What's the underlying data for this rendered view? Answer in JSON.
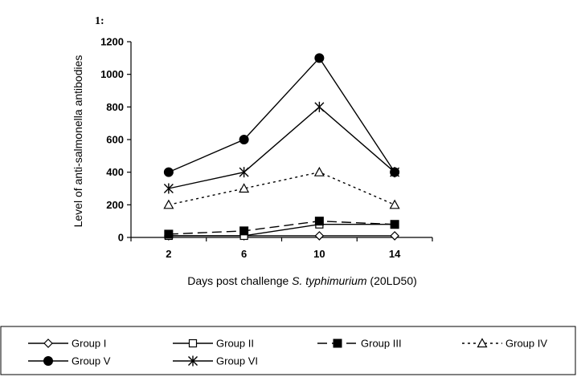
{
  "figure_label": "1:",
  "chart_data": {
    "type": "line",
    "title": "",
    "xlabel_prefix": "Days post challenge ",
    "xlabel_italic": "S. typhimurium",
    "xlabel_suffix": " (20LD50)",
    "ylabel": "Level of anti-salmonella antibodies",
    "categories": [
      "2",
      "6",
      "10",
      "14"
    ],
    "x": [
      2,
      6,
      10,
      14
    ],
    "ylim": [
      0,
      1200
    ],
    "yticks": [
      0,
      200,
      400,
      600,
      800,
      1000,
      1200
    ],
    "grid": false,
    "legend_position": "bottom",
    "series": [
      {
        "name": "Group I",
        "values": [
          10,
          10,
          10,
          10
        ],
        "marker": "diamond-open",
        "line": "solid",
        "color": "#000000"
      },
      {
        "name": "Group II",
        "values": [
          10,
          10,
          80,
          80
        ],
        "marker": "square-open",
        "line": "solid",
        "color": "#000000"
      },
      {
        "name": "Group III",
        "values": [
          20,
          40,
          100,
          80
        ],
        "marker": "square-filled",
        "line": "dashed",
        "color": "#000000"
      },
      {
        "name": "Group IV",
        "values": [
          200,
          300,
          400,
          200
        ],
        "marker": "triangle-open",
        "line": "dotted",
        "color": "#000000"
      },
      {
        "name": "Group V",
        "values": [
          400,
          600,
          1100,
          400
        ],
        "marker": "circle-filled",
        "line": "solid",
        "color": "#000000"
      },
      {
        "name": "Group VI",
        "values": [
          300,
          400,
          800,
          400
        ],
        "marker": "asterisk",
        "line": "solid",
        "color": "#000000"
      }
    ]
  }
}
